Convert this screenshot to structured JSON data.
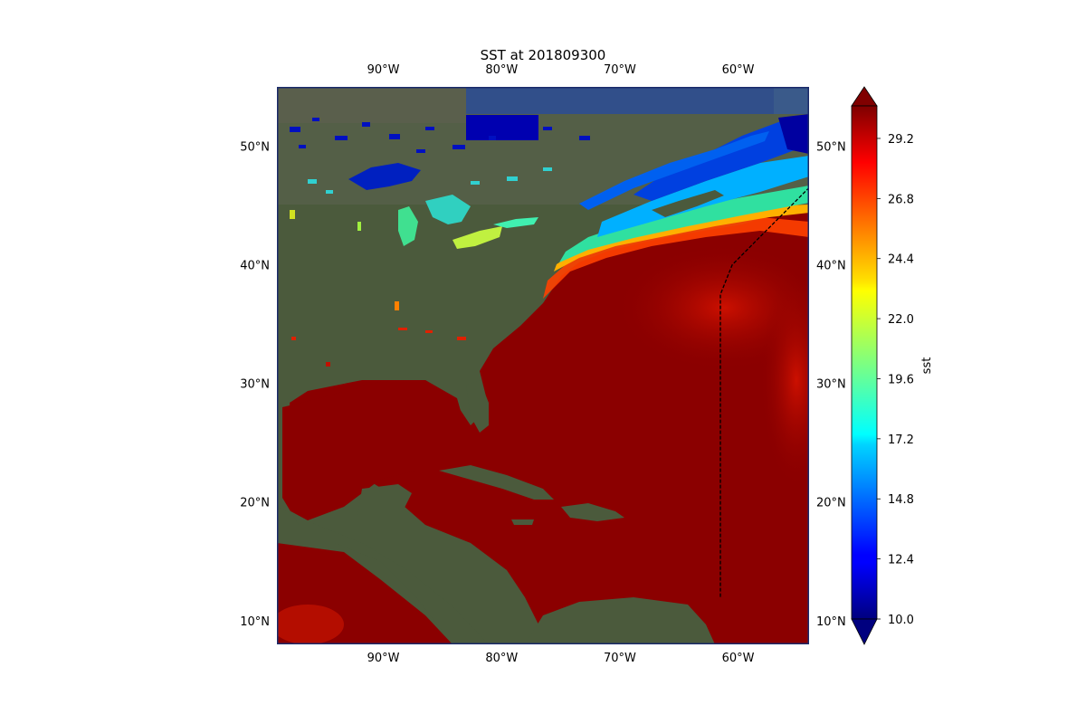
{
  "title": "SST at 201809300",
  "map": {
    "projection": "PlateCarree",
    "lon_range": [
      -99,
      -54
    ],
    "lat_range": [
      8,
      55
    ],
    "lon_ticks": [
      {
        "value": -90,
        "label": "90°W"
      },
      {
        "value": -80,
        "label": "80°W"
      },
      {
        "value": -70,
        "label": "70°W"
      },
      {
        "value": -60,
        "label": "60°W"
      }
    ],
    "lat_ticks": [
      {
        "value": 50,
        "label": "50°N"
      },
      {
        "value": 40,
        "label": "40°N"
      },
      {
        "value": 30,
        "label": "30°N"
      },
      {
        "value": 20,
        "label": "20°N"
      },
      {
        "value": 10,
        "label": "10°N"
      }
    ],
    "track_line": {
      "style": "dashed",
      "color": "#000000",
      "points": [
        [
          -61.5,
          12
        ],
        [
          -61.5,
          37.5
        ],
        [
          -60.5,
          40
        ],
        [
          -58,
          42.5
        ],
        [
          -55.5,
          45
        ],
        [
          -54,
          46.5
        ]
      ]
    },
    "colors": {
      "land": "#4b5a3c",
      "ocean_background": "#2e4a7a",
      "frame": "#000000"
    }
  },
  "colorbar": {
    "label": "sst",
    "colormap": "jet",
    "vmin": 10.0,
    "vmax": 30.5,
    "extend": "both",
    "ticks": [
      "10.0",
      "12.4",
      "14.8",
      "17.2",
      "19.6",
      "22.0",
      "24.4",
      "26.8",
      "29.2"
    ]
  }
}
